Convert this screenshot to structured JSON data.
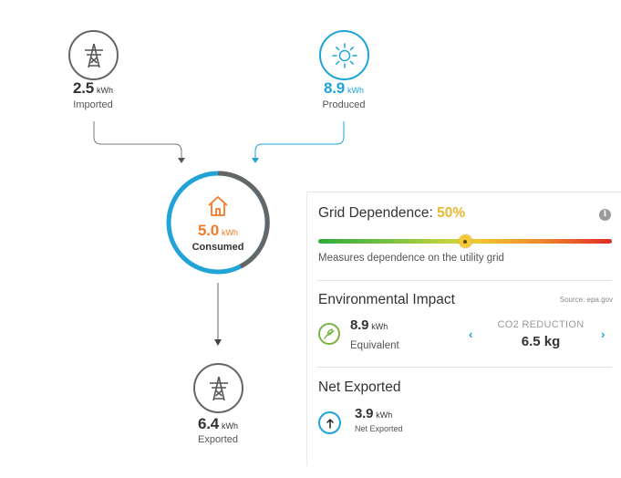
{
  "imported": {
    "value": "2.5",
    "unit": "kWh",
    "label": "Imported"
  },
  "produced": {
    "value": "8.9",
    "unit": "kWh",
    "label": "Produced"
  },
  "consumed": {
    "value": "5.0",
    "unit": "kWh",
    "label": "Consumed"
  },
  "exported": {
    "value": "6.4",
    "unit": "kWh",
    "label": "Exported"
  },
  "grid_dependence": {
    "title": "Grid Dependence:",
    "percent": "50%",
    "level": 0.5,
    "description": "Measures dependence on the utility grid"
  },
  "environmental_impact": {
    "title": "Environmental Impact",
    "source": "Source: epa.gov",
    "value": "8.9",
    "unit": "kWh",
    "label": "Equivalent",
    "co2_title": "CO2 REDUCTION",
    "co2_value": "6.5 kg"
  },
  "net_exported": {
    "title": "Net Exported",
    "value": "3.9",
    "unit": "kWh",
    "label": "Net Exported"
  },
  "colors": {
    "produced": "#20a4d8",
    "consumed": "#f07b26",
    "grid": "#555555",
    "grid_percent": "#e8b730",
    "eco": "#7cb342"
  }
}
